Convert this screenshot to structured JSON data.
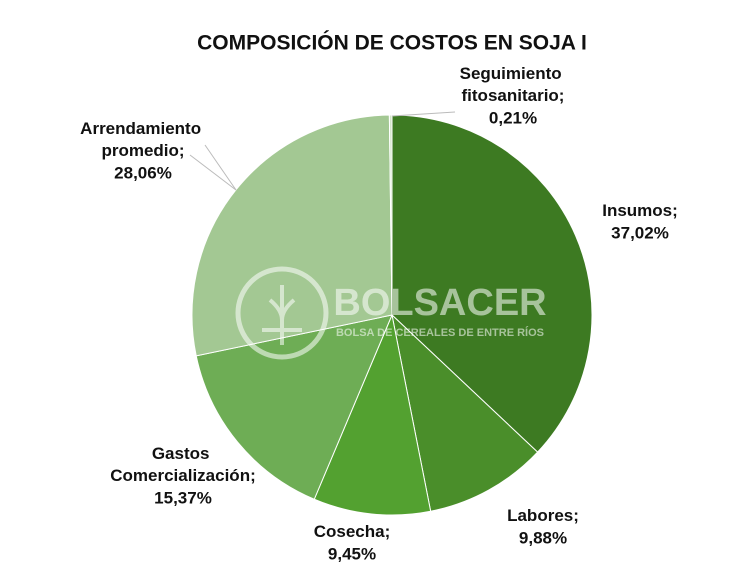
{
  "chart_data": {
    "type": "pie",
    "title": "COMPOSICIÓN DE COSTOS EN SOJA I",
    "categories": [
      "Insumos;",
      "Labores;",
      "Cosecha;",
      "Gastos Comercialización;",
      "Arrendamiento promedio;",
      "Seguimiento fitosanitario;"
    ],
    "values": [
      37.02,
      9.88,
      9.45,
      15.37,
      28.06,
      0.21
    ],
    "value_labels": [
      "37,02%",
      "9,88%",
      "9,45%",
      "15,37%",
      "28,06%",
      "0,21%"
    ],
    "colors": [
      "#3d7a22",
      "#4a8e2a",
      "#53a130",
      "#6ead55",
      "#a3c893",
      "#d3e5ca"
    ],
    "watermark": {
      "name": "BOLSACER",
      "subtitle": "BOLSA DE CEREALES DE ENTRE RÍOS"
    }
  }
}
